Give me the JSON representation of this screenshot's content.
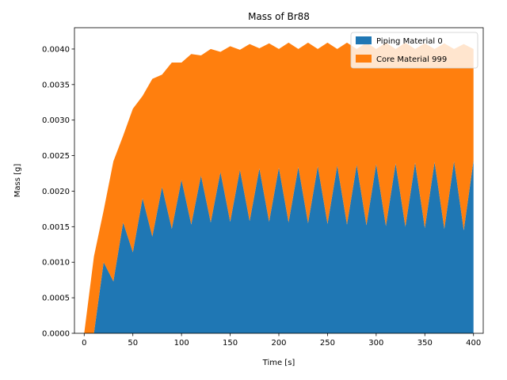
{
  "chart_data": {
    "type": "area",
    "stacked": true,
    "title": "Mass of Br88",
    "xlabel": "Time [s]",
    "ylabel": "Mass [g]",
    "xlim": [
      -10,
      410
    ],
    "ylim": [
      0,
      0.0043
    ],
    "xticks": [
      0,
      50,
      100,
      150,
      200,
      250,
      300,
      350,
      400
    ],
    "xtick_labels": [
      "0",
      "50",
      "100",
      "150",
      "200",
      "250",
      "300",
      "350",
      "400"
    ],
    "yticks": [
      0,
      0.0005,
      0.001,
      0.0015,
      0.002,
      0.0025,
      0.003,
      0.0035,
      0.004
    ],
    "ytick_labels": [
      "0.0000",
      "0.0005",
      "0.0010",
      "0.0015",
      "0.0020",
      "0.0025",
      "0.0030",
      "0.0035",
      "0.0040"
    ],
    "grid": false,
    "legend_position": "top-right",
    "x": [
      0,
      10,
      20,
      30,
      40,
      50,
      60,
      70,
      80,
      90,
      100,
      110,
      120,
      130,
      140,
      150,
      160,
      170,
      180,
      190,
      200,
      210,
      220,
      230,
      240,
      250,
      260,
      270,
      280,
      290,
      300,
      310,
      320,
      330,
      340,
      350,
      360,
      370,
      380,
      390,
      400
    ],
    "series": [
      {
        "name": "Piping Material 0",
        "color": "#1f77b4",
        "values": [
          0,
          0,
          0.001,
          0.00073,
          0.00156,
          0.00114,
          0.0019,
          0.00136,
          0.00206,
          0.00147,
          0.00216,
          0.00153,
          0.00222,
          0.00156,
          0.00227,
          0.00157,
          0.0023,
          0.00158,
          0.00232,
          0.00157,
          0.00233,
          0.00156,
          0.00234,
          0.00155,
          0.00235,
          0.00154,
          0.00236,
          0.00153,
          0.00237,
          0.00152,
          0.00238,
          0.00151,
          0.00239,
          0.0015,
          0.0024,
          0.00148,
          0.00241,
          0.00147,
          0.00242,
          0.00145,
          0.00243
        ]
      },
      {
        "name": "Core Material 999",
        "color": "#ff7f0e",
        "values": [
          0,
          0.00108,
          0.00073,
          0.00169,
          0.00122,
          0.00202,
          0.00144,
          0.00222,
          0.00158,
          0.00234,
          0.00165,
          0.0024,
          0.00169,
          0.00244,
          0.00169,
          0.00247,
          0.00169,
          0.00249,
          0.00169,
          0.00251,
          0.00167,
          0.00253,
          0.00166,
          0.00254,
          0.00165,
          0.00255,
          0.00164,
          0.00256,
          0.00163,
          0.00257,
          0.00162,
          0.00258,
          0.00161,
          0.00259,
          0.0016,
          0.0026,
          0.00159,
          0.00261,
          0.00158,
          0.00262,
          0.00157
        ]
      }
    ]
  }
}
